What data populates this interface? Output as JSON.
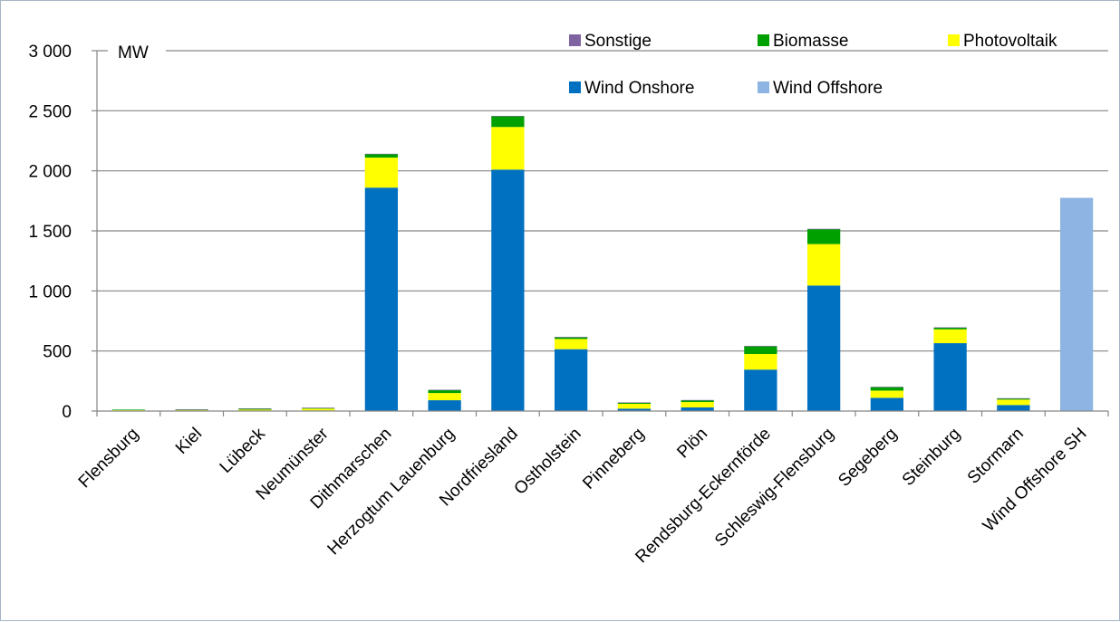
{
  "chart_data": {
    "type": "bar",
    "stacked": true,
    "ylabel": "MW",
    "ylim": [
      0,
      3000
    ],
    "yticks": [
      0,
      500,
      1000,
      1500,
      2000,
      2500,
      3000
    ],
    "ytick_labels": [
      "0",
      "500",
      "1 000",
      "1 500",
      "2 000",
      "2 500",
      "3 000"
    ],
    "grid": true,
    "legend_position": "top-right",
    "categories": [
      "Flensburg",
      "Kiel",
      "Lübeck",
      "Neumünster",
      "Dithmarschen",
      "Herzogtum Lauenburg",
      "Nordfriesland",
      "Ostholstein",
      "Pinneberg",
      "Plön",
      "Rendsburg-Eckernförde",
      "Schleswig-Flensburg",
      "Segeberg",
      "Steinburg",
      "Stormarn",
      "Wind Offshore SH"
    ],
    "series": [
      {
        "name": "Wind Onshore",
        "color": "#0070c0",
        "values": [
          0,
          0,
          0,
          5,
          1860,
          90,
          2010,
          515,
          20,
          30,
          345,
          1045,
          110,
          565,
          50,
          0
        ]
      },
      {
        "name": "Photovoltaik",
        "color": "#ffff00",
        "values": [
          10,
          8,
          12,
          15,
          250,
          60,
          355,
          85,
          40,
          45,
          130,
          345,
          60,
          115,
          45,
          0
        ]
      },
      {
        "name": "Biomasse",
        "color": "#00a000",
        "values": [
          2,
          4,
          8,
          6,
          30,
          25,
          90,
          15,
          10,
          15,
          65,
          125,
          30,
          15,
          10,
          0
        ]
      },
      {
        "name": "Sonstige",
        "color": "#8064a2",
        "values": [
          0,
          2,
          2,
          2,
          2,
          2,
          2,
          2,
          2,
          2,
          2,
          2,
          2,
          2,
          2,
          0
        ]
      },
      {
        "name": "Wind Offshore",
        "color": "#8db4e2",
        "values": [
          0,
          0,
          0,
          0,
          0,
          0,
          0,
          0,
          0,
          0,
          0,
          0,
          0,
          0,
          0,
          1775
        ]
      }
    ],
    "legend_order": [
      "Sonstige",
      "Biomasse",
      "Photovoltaik",
      "Wind Onshore",
      "Wind Offshore"
    ]
  }
}
